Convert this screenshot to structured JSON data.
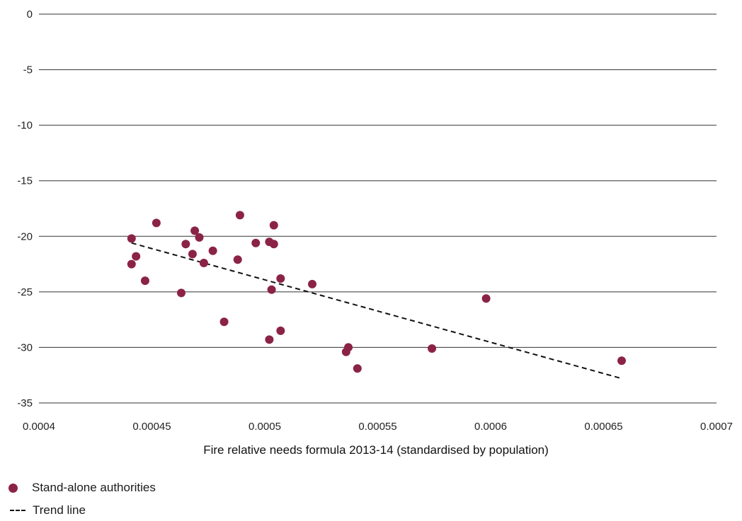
{
  "chart_data": {
    "type": "scatter",
    "xlabel": "Fire relative needs formula 2013-14 (standardised by population)",
    "ylabel": "",
    "xlim": [
      0.0004,
      0.0007
    ],
    "ylim": [
      -35,
      0
    ],
    "x_ticks": [
      "0.0004",
      "0.00045",
      "0.0005",
      "0.00055",
      "0.0006",
      "0.00065",
      "0.0007"
    ],
    "y_ticks": [
      "0",
      "-5",
      "-10",
      "-15",
      "-20",
      "-25",
      "-30",
      "-35"
    ],
    "grid": "horizontal",
    "series": [
      {
        "name": "Stand-alone authorities",
        "color": "#8b2346",
        "points": [
          {
            "x": 0.000441,
            "y": -20.2
          },
          {
            "x": 0.000441,
            "y": -22.5
          },
          {
            "x": 0.000443,
            "y": -21.8
          },
          {
            "x": 0.000447,
            "y": -24.0
          },
          {
            "x": 0.000452,
            "y": -18.8
          },
          {
            "x": 0.000463,
            "y": -25.1
          },
          {
            "x": 0.000465,
            "y": -20.7
          },
          {
            "x": 0.000468,
            "y": -21.6
          },
          {
            "x": 0.000469,
            "y": -19.5
          },
          {
            "x": 0.000471,
            "y": -20.1
          },
          {
            "x": 0.000473,
            "y": -22.4
          },
          {
            "x": 0.000477,
            "y": -21.3
          },
          {
            "x": 0.000482,
            "y": -27.7
          },
          {
            "x": 0.000488,
            "y": -22.1
          },
          {
            "x": 0.000489,
            "y": -18.1
          },
          {
            "x": 0.000496,
            "y": -20.6
          },
          {
            "x": 0.000502,
            "y": -20.5
          },
          {
            "x": 0.000502,
            "y": -29.3
          },
          {
            "x": 0.000503,
            "y": -24.8
          },
          {
            "x": 0.000504,
            "y": -19.0
          },
          {
            "x": 0.000504,
            "y": -20.7
          },
          {
            "x": 0.000507,
            "y": -23.8
          },
          {
            "x": 0.000507,
            "y": -28.5
          },
          {
            "x": 0.000521,
            "y": -24.3
          },
          {
            "x": 0.000536,
            "y": -30.4
          },
          {
            "x": 0.000537,
            "y": -30.0
          },
          {
            "x": 0.000541,
            "y": -31.9
          },
          {
            "x": 0.000574,
            "y": -30.1
          },
          {
            "x": 0.000598,
            "y": -25.6
          },
          {
            "x": 0.000658,
            "y": -31.2
          }
        ]
      },
      {
        "name": "Trend line",
        "type": "line",
        "style": "dashed",
        "color": "#111111",
        "points": [
          {
            "x": 0.000441,
            "y": -20.6
          },
          {
            "x": 0.000658,
            "y": -32.8
          }
        ]
      }
    ]
  }
}
